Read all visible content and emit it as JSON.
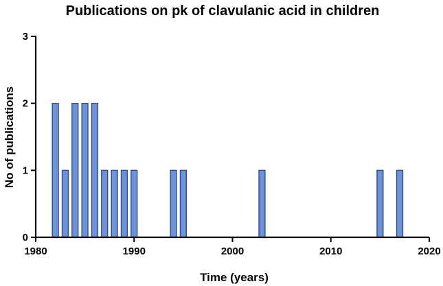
{
  "chart_data": {
    "type": "bar",
    "title": "Publications on pk of clavulanic acid in children",
    "xlabel": "Time (years)",
    "ylabel": "No of publications",
    "xlim": [
      1980,
      2020
    ],
    "ylim": [
      0,
      3
    ],
    "x_ticks": [
      1980,
      1990,
      2000,
      2010,
      2020
    ],
    "y_ticks": [
      0,
      1,
      2,
      3
    ],
    "grid": false,
    "legend": "none",
    "bar_color": "#6f93d6",
    "bar_edge_color": "#2b4f8a",
    "x": [
      1982,
      1983,
      1984,
      1985,
      1986,
      1987,
      1988,
      1989,
      1990,
      1994,
      1995,
      2003,
      2015,
      2017
    ],
    "values": [
      2,
      1,
      2,
      2,
      2,
      1,
      1,
      1,
      1,
      1,
      1,
      1,
      1,
      1
    ]
  }
}
